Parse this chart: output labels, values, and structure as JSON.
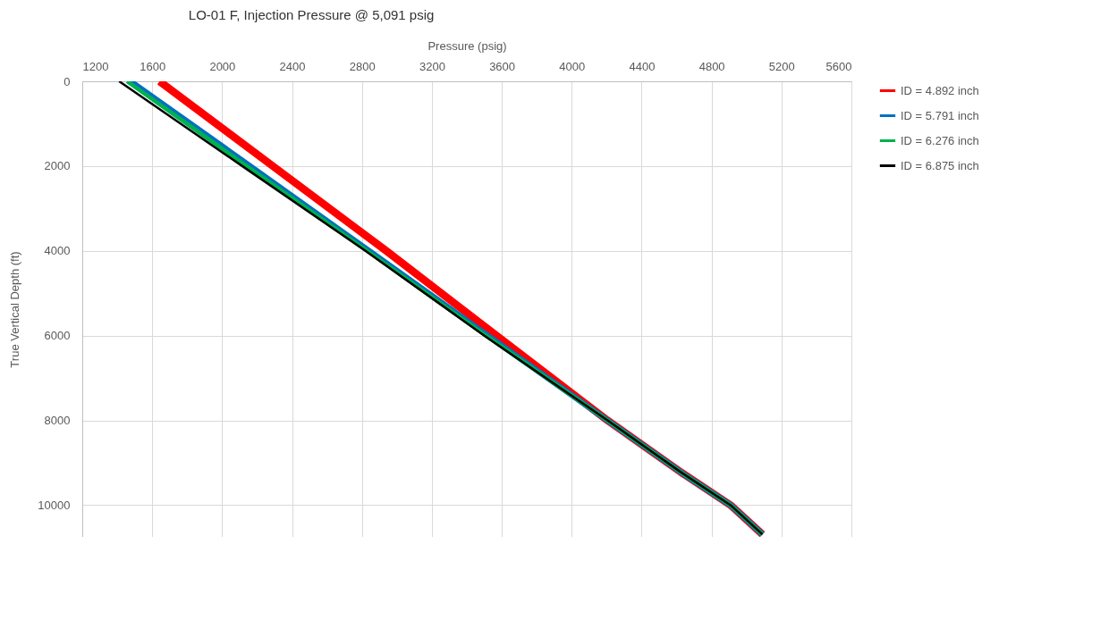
{
  "chart_data": {
    "type": "line",
    "title": "LO-01 F, Injection Pressure @ 5,091 psig",
    "xlabel": "Pressure (psig)",
    "ylabel": "True Vertical Depth (ft)",
    "xlim": [
      1200,
      5600
    ],
    "xticks": [
      1200,
      1600,
      2000,
      2400,
      2800,
      3200,
      3600,
      4000,
      4400,
      4800,
      5200,
      5600
    ],
    "ylim": [
      10750,
      0
    ],
    "yticks": [
      0,
      2000,
      4000,
      6000,
      8000,
      10000
    ],
    "grid": true,
    "legend": "right",
    "line_style": "solid",
    "marker": "none",
    "series": [
      {
        "name": "ID = 4.892 inch",
        "color": "#ff0000",
        "x": [
          1642,
          2290,
          2939,
          3570,
          4205,
          4627,
          4909,
          5091
        ],
        "values": [
          0,
          2000,
          4000,
          6000,
          8000,
          9230,
          10000,
          10690
        ]
      },
      {
        "name": "ID = 5.791 inch",
        "color": "#0070c0",
        "x": [
          1476,
          2160,
          2840,
          3520,
          4205,
          4627,
          4909,
          5091
        ],
        "values": [
          0,
          2000,
          4000,
          6000,
          8000,
          9230,
          10000,
          10690
        ]
      },
      {
        "name": "ID = 6.276 inch",
        "color": "#00b050",
        "x": [
          1456,
          2140,
          2830,
          3510,
          4205,
          4627,
          4909,
          5091
        ],
        "values": [
          0,
          2000,
          4000,
          6000,
          8000,
          9230,
          10000,
          10690
        ]
      },
      {
        "name": "ID = 6.875 inch",
        "color": "#000000",
        "x": [
          1411,
          2115,
          2820,
          3500,
          4205,
          4627,
          4909,
          5091
        ],
        "values": [
          0,
          2000,
          4000,
          6000,
          8000,
          9230,
          10000,
          10690
        ]
      }
    ]
  }
}
